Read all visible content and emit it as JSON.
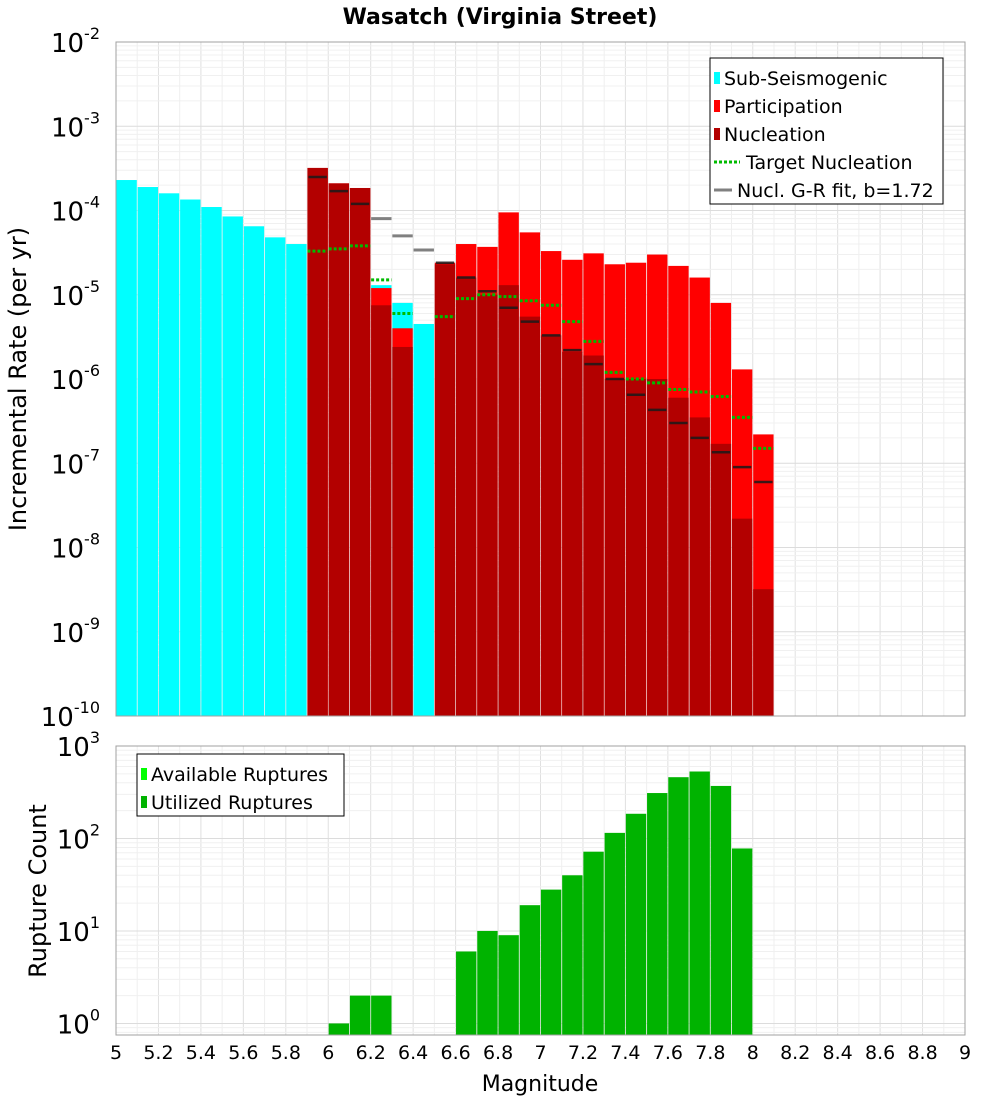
{
  "chart_data": [
    {
      "type": "bar",
      "title": "Wasatch (Virginia Street)",
      "xlabel": "",
      "ylabel": "Incremental Rate (per yr)",
      "xlim": [
        5,
        9
      ],
      "ylim": [
        1e-10,
        0.01
      ],
      "yscale": "log",
      "y_tick_labels": [
        {
          "base": "10",
          "exp": "-10",
          "value": 1e-10
        },
        {
          "base": "10",
          "exp": "-9",
          "value": 1e-09
        },
        {
          "base": "10",
          "exp": "-8",
          "value": 1e-08
        },
        {
          "base": "10",
          "exp": "-7",
          "value": 1e-07
        },
        {
          "base": "10",
          "exp": "-6",
          "value": 1e-06
        },
        {
          "base": "10",
          "exp": "-5",
          "value": 1e-05
        },
        {
          "base": "10",
          "exp": "-4",
          "value": 0.0001
        },
        {
          "base": "10",
          "exp": "-3",
          "value": 0.001
        },
        {
          "base": "10",
          "exp": "-2",
          "value": 0.01
        }
      ],
      "legend": {
        "position": "top-right",
        "entries": [
          {
            "label": "Sub-Seismogenic",
            "color": "#00ffff",
            "style": "box"
          },
          {
            "label": "Participation",
            "color": "#ff0000",
            "style": "box"
          },
          {
            "label": "Nucleation",
            "color": "#b30000",
            "style": "box"
          },
          {
            "label": "Target Nucleation",
            "color": "#00bb00",
            "style": "dotted"
          },
          {
            "label": "Nucl. G-R fit, b=1.72",
            "color": "#808080",
            "style": "line"
          }
        ]
      },
      "series": [
        {
          "name": "Sub-Seismogenic",
          "color": "#00ffff",
          "x": [
            5.05,
            5.15,
            5.25,
            5.35,
            5.45,
            5.55,
            5.65,
            5.75,
            5.85,
            6.25,
            6.35,
            6.45
          ],
          "values": [
            0.00023,
            0.00019,
            0.00016,
            0.000135,
            0.00011,
            8.5e-05,
            6.5e-05,
            4.8e-05,
            4e-05,
            1.3e-05,
            8e-06,
            4.5e-06
          ]
        },
        {
          "name": "Participation",
          "color": "#ff0000",
          "x": [
            5.95,
            6.05,
            6.15,
            6.25,
            6.35,
            6.55,
            6.65,
            6.75,
            6.85,
            6.95,
            7.05,
            7.15,
            7.25,
            7.35,
            7.45,
            7.55,
            7.65,
            7.75,
            7.85,
            7.95,
            8.05
          ],
          "values": [
            0.00032,
            0.00021,
            0.000185,
            1.2e-05,
            4e-06,
            2.4e-05,
            4e-05,
            3.7e-05,
            9.5e-05,
            5.5e-05,
            3.3e-05,
            2.6e-05,
            3.1e-05,
            2.3e-05,
            2.4e-05,
            3e-05,
            2.2e-05,
            1.6e-05,
            8e-06,
            1.3e-06,
            2.2e-07
          ]
        },
        {
          "name": "Nucleation",
          "color": "#b30000",
          "x": [
            5.95,
            6.05,
            6.15,
            6.25,
            6.35,
            6.55,
            6.65,
            6.75,
            6.85,
            6.95,
            7.05,
            7.15,
            7.25,
            7.35,
            7.45,
            7.55,
            7.65,
            7.75,
            7.85,
            7.95,
            8.05
          ],
          "values": [
            0.00032,
            0.00021,
            0.000185,
            7.5e-06,
            2.4e-06,
            2.3e-05,
            1.6e-05,
            1e-05,
            1.3e-05,
            5.5e-06,
            3.3e-06,
            2.1e-06,
            1.9e-06,
            1e-06,
            1e-06,
            1e-06,
            6e-07,
            3.5e-07,
            1.7e-07,
            2.2e-08,
            3.2e-09
          ]
        },
        {
          "name": "Nucleation marks",
          "color": "#1a1a1a",
          "x": [
            5.95,
            6.05,
            6.15,
            6.55,
            6.65,
            6.75,
            6.85,
            6.95,
            7.05,
            7.15,
            7.25,
            7.35,
            7.45,
            7.55,
            7.65,
            7.75,
            7.85,
            7.95,
            8.05
          ],
          "values": [
            0.00025,
            0.00017,
            0.00012,
            2.4e-05,
            1.6e-05,
            1.1e-05,
            7e-06,
            4.8e-06,
            3.3e-06,
            2.2e-06,
            1.5e-06,
            1e-06,
            6.5e-07,
            4.3e-07,
            3e-07,
            2e-07,
            1.35e-07,
            9e-08,
            6e-08
          ]
        },
        {
          "name": "Target Nucleation",
          "color": "#00bb00",
          "x": [
            5.95,
            6.05,
            6.15,
            6.25,
            6.35,
            6.55,
            6.65,
            6.75,
            6.85,
            6.95,
            7.05,
            7.15,
            7.25,
            7.35,
            7.45,
            7.55,
            7.65,
            7.75,
            7.85,
            7.95,
            8.05
          ],
          "values": [
            3.3e-05,
            3.5e-05,
            3.8e-05,
            1.5e-05,
            6e-06,
            5.5e-06,
            9e-06,
            1e-05,
            9.5e-06,
            8.5e-06,
            7.5e-06,
            4.8e-06,
            2.8e-06,
            1.2e-06,
            1e-06,
            9e-07,
            7.5e-07,
            7e-07,
            6.2e-07,
            3.5e-07,
            1.5e-07
          ]
        },
        {
          "name": "Nucl. G-R fit, b=1.72",
          "color": "#808080",
          "x": [
            6.25,
            6.35,
            6.45
          ],
          "values": [
            8e-05,
            5e-05,
            3.4e-05
          ]
        }
      ]
    },
    {
      "type": "bar",
      "title": "",
      "xlabel": "Magnitude",
      "ylabel": "Rupture Count",
      "xlim": [
        5,
        9
      ],
      "ylim": [
        0.75,
        1000
      ],
      "yscale": "log",
      "x_tick_labels": [
        "5",
        "5.2",
        "5.4",
        "5.6",
        "5.8",
        "6",
        "6.2",
        "6.4",
        "6.6",
        "6.8",
        "7",
        "7.2",
        "7.4",
        "7.6",
        "7.8",
        "8",
        "8.2",
        "8.4",
        "8.6",
        "8.8",
        "9"
      ],
      "y_tick_labels": [
        {
          "base": "10",
          "exp": "0",
          "value": 1
        },
        {
          "base": "10",
          "exp": "1",
          "value": 10
        },
        {
          "base": "10",
          "exp": "2",
          "value": 100
        },
        {
          "base": "10",
          "exp": "3",
          "value": 1000
        }
      ],
      "legend": {
        "position": "top-left",
        "entries": [
          {
            "label": "Available Ruptures",
            "color": "#00ff00",
            "style": "box"
          },
          {
            "label": "Utilized Ruptures",
            "color": "#00b300",
            "style": "box"
          }
        ]
      },
      "series": [
        {
          "name": "Utilized Ruptures",
          "color": "#00b300",
          "x": [
            6.05,
            6.15,
            6.25,
            6.65,
            6.75,
            6.85,
            6.95,
            7.05,
            7.15,
            7.25,
            7.35,
            7.45,
            7.55,
            7.65,
            7.75,
            7.85,
            7.95
          ],
          "values": [
            1,
            2,
            2,
            6,
            10,
            9,
            19,
            28,
            40,
            72,
            115,
            185,
            310,
            460,
            530,
            370,
            78
          ]
        }
      ]
    }
  ]
}
